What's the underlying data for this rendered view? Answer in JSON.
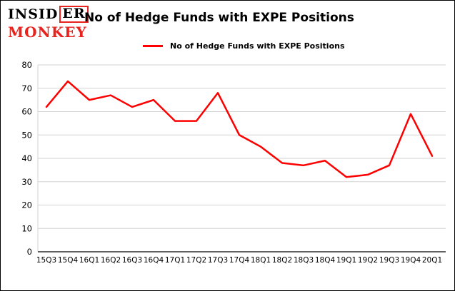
{
  "logo": {
    "part1": "INSID",
    "part2": "ER",
    "line2": "MONKEY"
  },
  "header": {
    "title": "No of Hedge Funds with EXPE Positions"
  },
  "legend": {
    "label": "No of Hedge Funds with EXPE Positions"
  },
  "colors": {
    "line": "#ff0000",
    "logo_red": "#e8221c",
    "grid": "#d3d3d3",
    "axis": "#000000",
    "background": "#ffffff",
    "border": "#000000"
  },
  "chart_data": {
    "type": "line",
    "title": "No of Hedge Funds with EXPE Positions",
    "legend_label": "No of Hedge Funds with EXPE Positions",
    "legend_position": "top-left",
    "grid": true,
    "xlabel": "",
    "ylabel": "",
    "ylim": [
      0,
      80
    ],
    "yticks": [
      0,
      10,
      20,
      30,
      40,
      50,
      60,
      70,
      80
    ],
    "categories": [
      "15Q3",
      "15Q4",
      "16Q1",
      "16Q2",
      "16Q3",
      "16Q4",
      "17Q1",
      "17Q2",
      "17Q3",
      "17Q4",
      "18Q1",
      "18Q2",
      "18Q3",
      "18Q4",
      "19Q1",
      "19Q2",
      "19Q3",
      "19Q4",
      "20Q1"
    ],
    "series": [
      {
        "name": "No of Hedge Funds with EXPE Positions",
        "values": [
          62,
          73,
          65,
          67,
          62,
          65,
          56,
          56,
          68,
          50,
          45,
          38,
          37,
          39,
          32,
          33,
          37,
          59,
          41
        ]
      }
    ],
    "line_color": "#ff0000"
  }
}
